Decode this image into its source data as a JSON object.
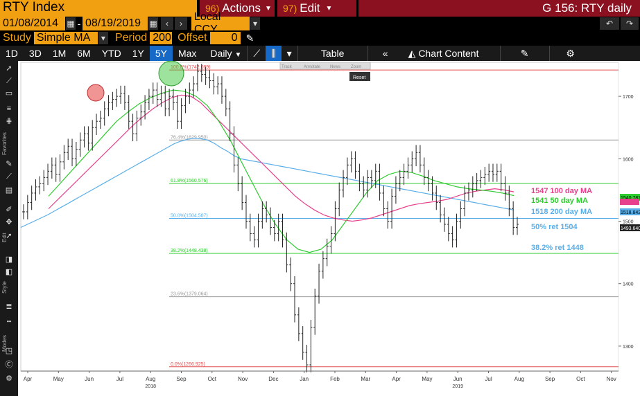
{
  "header": {
    "title": "RTY Index",
    "actions": {
      "num": "96)",
      "label": "Actions"
    },
    "edit": {
      "num": "97)",
      "label": "Edit"
    },
    "screen_title": "G 156: RTY daily"
  },
  "range": {
    "start": "01/08/2014",
    "dash": "-",
    "end": "08/19/2019",
    "currency": "Local CCY"
  },
  "study": {
    "study_label": "Study",
    "study_value": "Simple MA",
    "period_label": "Period",
    "period_value": "200",
    "offset_label": "Offset",
    "offset_value": "0"
  },
  "toolbar": {
    "periods": [
      "1D",
      "3D",
      "1M",
      "6M",
      "YTD",
      "1Y",
      "5Y",
      "Max"
    ],
    "active_period": "5Y",
    "frequency": "Daily",
    "table_label": "Table",
    "chart_content_label": "Chart Content"
  },
  "sidebar": {
    "favorites_label": "Favorites",
    "edit_label": "Edit",
    "style_label": "Style",
    "modes_label": "Modes"
  },
  "mini_toolbar": {
    "track": "Track",
    "annotate": "Annotate",
    "news": "News",
    "zoom": "Zoom",
    "reset": "Reset"
  },
  "colors": {
    "amber": "#f0a010",
    "red_bar": "#8b1020",
    "active_tab": "#1769c8",
    "ma200": "#5aaee8",
    "ma100": "#e8408c",
    "ma50": "#2ecc2e"
  },
  "chart_data": {
    "type": "line",
    "title": "",
    "y_ticks": [
      1300,
      1400,
      1500,
      1600,
      1700
    ],
    "ylim": [
      1260,
      1750
    ],
    "x_ticks": [
      "Apr",
      "May",
      "Jun",
      "Jul",
      "Aug",
      "Sep",
      "Oct",
      "Nov",
      "Dec",
      "Jan",
      "Feb",
      "Mar",
      "Apr",
      "May",
      "Jun",
      "Jul",
      "Aug",
      "Sep",
      "Oct",
      "Nov"
    ],
    "year_labels": [
      {
        "label": "2018",
        "under": "Aug"
      },
      {
        "label": "2019",
        "under": "Jun"
      }
    ],
    "fib_levels": [
      {
        "label": "100.0%(1742.089)",
        "value": 1742.089,
        "color": "#e05050"
      },
      {
        "label": "76.4%(1629.950)",
        "value": 1629.95,
        "color": "#999999"
      },
      {
        "label": "61.8%(1560.576)",
        "value": 1560.576,
        "color": "#2ecc2e"
      },
      {
        "label": "50.0%(1504.507)",
        "value": 1504.507,
        "color": "#5aaee8"
      },
      {
        "label": "38.2%(1448.438)",
        "value": 1448.438,
        "color": "#2ecc2e"
      },
      {
        "label": "23.6%(1379.064)",
        "value": 1379.064,
        "color": "#999999"
      },
      {
        "label": "0.0%(1266.925)",
        "value": 1266.925,
        "color": "#e05050"
      }
    ],
    "legend": [
      {
        "text": "1547 100 day MA",
        "color": "#e8408c"
      },
      {
        "text": "1541 50 day MA",
        "color": "#2ecc2e"
      },
      {
        "text": "1518 200 day MA",
        "color": "#5aaee8"
      },
      {
        "text": "50% ret 1504",
        "color": "#5aaee8"
      },
      {
        "text": "38.2% ret 1448",
        "color": "#5aaee8"
      }
    ],
    "last_value_tags": [
      {
        "text": "1540.782",
        "value": 1540.782,
        "color": "#2ecc2e"
      },
      {
        "text": "1547",
        "value": 1547,
        "color": "#e8408c"
      },
      {
        "text": "1518.842",
        "value": 1518.842,
        "color": "#5aaee8"
      },
      {
        "text": "1493.640",
        "value": 1493.64,
        "color": "#ffffff"
      }
    ],
    "price": [
      1515,
      1530,
      1545,
      1555,
      1560,
      1570,
      1580,
      1590,
      1575,
      1595,
      1610,
      1620,
      1600,
      1615,
      1630,
      1640,
      1625,
      1650,
      1660,
      1665,
      1680,
      1690,
      1695,
      1700,
      1705,
      1690,
      1660,
      1640,
      1665,
      1675,
      1690,
      1700,
      1710,
      1695,
      1705,
      1680,
      1700,
      1690,
      1660,
      1685,
      1700,
      1710,
      1720,
      1740,
      1735,
      1730,
      1725,
      1715,
      1720,
      1700,
      1680,
      1640,
      1590,
      1560,
      1530,
      1500,
      1480,
      1470,
      1500,
      1520,
      1510,
      1490,
      1480,
      1500,
      1470,
      1430,
      1400,
      1350,
      1320,
      1290,
      1270,
      1330,
      1380,
      1420,
      1440,
      1460,
      1480,
      1520,
      1550,
      1570,
      1590,
      1600,
      1580,
      1560,
      1550,
      1570,
      1565,
      1580,
      1545,
      1520,
      1500,
      1540,
      1560,
      1570,
      1580,
      1590,
      1600,
      1610,
      1590,
      1570,
      1560,
      1545,
      1530,
      1510,
      1495,
      1480,
      1470,
      1500,
      1520,
      1545,
      1550,
      1560,
      1565,
      1570,
      1575,
      1580,
      1575,
      1580,
      1560,
      1545,
      1520,
      1490,
      1495
    ],
    "ma200": [
      1490,
      1495,
      1500,
      1505,
      1510,
      1516,
      1522,
      1528,
      1534,
      1540,
      1546,
      1552,
      1558,
      1564,
      1570,
      1576,
      1582,
      1588,
      1594,
      1600,
      1606,
      1612,
      1618,
      1624,
      1628,
      1631,
      1633,
      1632,
      1630,
      1625,
      1618,
      1612,
      1605,
      1600,
      1598,
      1596,
      1594,
      1592,
      1590,
      1588,
      1586,
      1584,
      1582,
      1580,
      1578,
      1576,
      1574,
      1572,
      1570,
      1568,
      1566,
      1564,
      1562,
      1560,
      1558,
      1556,
      1554,
      1552,
      1550,
      1548,
      1546,
      1544,
      1542,
      1540,
      1538,
      1536,
      1534,
      1532,
      1530,
      1528,
      1526,
      1524,
      1522,
      1520,
      1518
    ],
    "ma100": [
      1520,
      1535,
      1550,
      1565,
      1580,
      1595,
      1610,
      1625,
      1640,
      1655,
      1668,
      1680,
      1690,
      1698,
      1702,
      1700,
      1690,
      1675,
      1660,
      1645,
      1630,
      1615,
      1600,
      1585,
      1570,
      1555,
      1540,
      1528,
      1518,
      1510,
      1505,
      1502,
      1500,
      1502,
      1505,
      1510,
      1515,
      1520,
      1525,
      1528,
      1530,
      1532,
      1535,
      1540,
      1545,
      1548,
      1550,
      1552,
      1550,
      1547
    ],
    "ma50": [
      1540,
      1560,
      1580,
      1600,
      1620,
      1640,
      1660,
      1675,
      1688,
      1698,
      1705,
      1710,
      1708,
      1700,
      1685,
      1660,
      1630,
      1595,
      1560,
      1525,
      1495,
      1470,
      1455,
      1450,
      1455,
      1470,
      1495,
      1520,
      1545,
      1565,
      1575,
      1580,
      1578,
      1572,
      1565,
      1560,
      1555,
      1552,
      1550,
      1548,
      1545,
      1541
    ]
  }
}
